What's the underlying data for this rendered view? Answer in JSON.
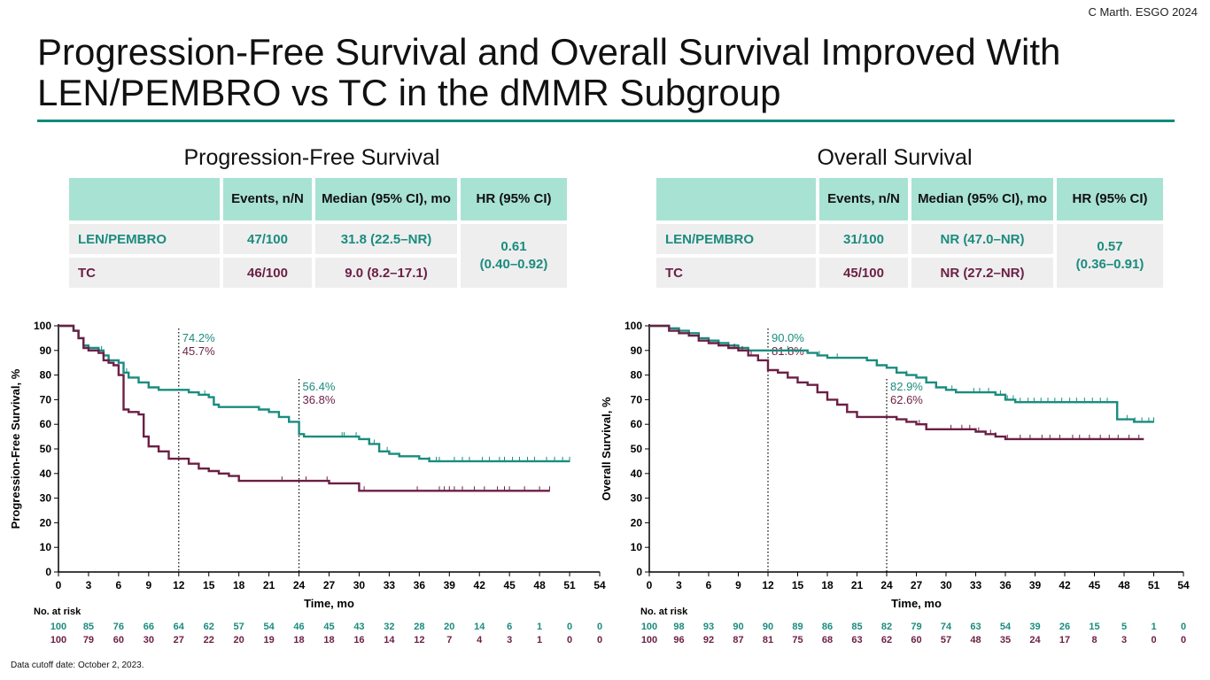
{
  "citation": "C Marth. ESGO 2024",
  "title": "Progression-Free Survival and Overall Survival Improved With LEN/PEMBRO vs TC in the dMMR Subgroup",
  "footnote": "Data cutoff date: October 2, 2023.",
  "colors": {
    "teal": "#1a8c7e",
    "maroon": "#6b1f45",
    "rule": "#0e8a7e",
    "header_fill": "#a8e2d2",
    "row_fill": "#eeeeee"
  },
  "tables": {
    "pfs": {
      "title": "Progression-Free Survival",
      "headers": [
        "Events, n/N",
        "Median (95% CI), mo",
        "HR (95% CI)"
      ],
      "rows": [
        {
          "label": "LEN/PEMBRO",
          "events": "47/100",
          "median": "31.8 (22.5–NR)"
        },
        {
          "label": "TC",
          "events": "46/100",
          "median": "9.0 (8.2–17.1)"
        }
      ],
      "hr": "0.61",
      "hr_ci": "(0.40–0.92)"
    },
    "os": {
      "title": "Overall Survival",
      "headers": [
        "Events, n/N",
        "Median (95% CI), mo",
        "HR (95% CI)"
      ],
      "rows": [
        {
          "label": "LEN/PEMBRO",
          "events": "31/100",
          "median": "NR (47.0–NR)"
        },
        {
          "label": "TC",
          "events": "45/100",
          "median": "NR (27.2–NR)"
        }
      ],
      "hr": "0.57",
      "hr_ci": "(0.36–0.91)"
    }
  },
  "chart_data": [
    {
      "id": "pfs",
      "type": "line",
      "step": true,
      "ylabel": "Progression-Free Survival, %",
      "xlabel": "Time, mo",
      "xlim": [
        0,
        54
      ],
      "ylim": [
        0,
        100
      ],
      "x_ticks": [
        0,
        3,
        6,
        9,
        12,
        15,
        18,
        21,
        24,
        27,
        30,
        33,
        36,
        39,
        42,
        45,
        48,
        51,
        54
      ],
      "y_ticks": [
        0,
        10,
        20,
        30,
        40,
        50,
        60,
        70,
        80,
        90,
        100
      ],
      "annotations": [
        {
          "x": 12,
          "labels": [
            {
              "text": "74.2%",
              "series": 0
            },
            {
              "text": "45.7%",
              "series": 1
            }
          ]
        },
        {
          "x": 24,
          "labels": [
            {
              "text": "56.4%",
              "series": 0
            },
            {
              "text": "36.8%",
              "series": 1
            }
          ]
        }
      ],
      "series": [
        {
          "color": "#1a8c7e",
          "points": [
            [
              0,
              100
            ],
            [
              1.5,
              98
            ],
            [
              2,
              95
            ],
            [
              2.5,
              92
            ],
            [
              3,
              91
            ],
            [
              4,
              90
            ],
            [
              4.5,
              88
            ],
            [
              5,
              86
            ],
            [
              6,
              85
            ],
            [
              6.5,
              81
            ],
            [
              7,
              79
            ],
            [
              8,
              77
            ],
            [
              9,
              75
            ],
            [
              10,
              74
            ],
            [
              12,
              74
            ],
            [
              13,
              73
            ],
            [
              14,
              72
            ],
            [
              15,
              71
            ],
            [
              15.5,
              68
            ],
            [
              16,
              67
            ],
            [
              18,
              67
            ],
            [
              20,
              66
            ],
            [
              21,
              65
            ],
            [
              22,
              63
            ],
            [
              23,
              61
            ],
            [
              24,
              56
            ],
            [
              24.5,
              55
            ],
            [
              27,
              55
            ],
            [
              30,
              54
            ],
            [
              31,
              52
            ],
            [
              32,
              49
            ],
            [
              33,
              48
            ],
            [
              34,
              47
            ],
            [
              35,
              47
            ],
            [
              36,
              46
            ],
            [
              37,
              45
            ],
            [
              51,
              45
            ]
          ],
          "censor_x": [
            4.3,
            6.8,
            14.6,
            28.3,
            28.5,
            29.7,
            31.5,
            32.8,
            37,
            37.7,
            38,
            39.5,
            40.3,
            41,
            42.3,
            43,
            44,
            44.5,
            45.3,
            46,
            46.8,
            47.5,
            48.7,
            49.5,
            50.3,
            51
          ]
        },
        {
          "color": "#6b1f45",
          "points": [
            [
              0,
              100
            ],
            [
              1.5,
              98
            ],
            [
              2,
              95
            ],
            [
              2.5,
              91
            ],
            [
              3,
              90
            ],
            [
              4,
              89
            ],
            [
              4.5,
              86
            ],
            [
              5,
              85
            ],
            [
              5.5,
              84
            ],
            [
              6,
              80
            ],
            [
              6.5,
              66
            ],
            [
              7,
              65
            ],
            [
              8,
              64
            ],
            [
              8.5,
              55
            ],
            [
              9,
              51
            ],
            [
              10,
              49
            ],
            [
              11,
              46
            ],
            [
              12,
              46
            ],
            [
              13,
              44
            ],
            [
              14,
              42
            ],
            [
              15,
              41
            ],
            [
              16,
              40
            ],
            [
              17,
              39
            ],
            [
              18,
              37
            ],
            [
              20,
              37
            ],
            [
              23,
              37
            ],
            [
              25,
              37
            ],
            [
              27,
              36
            ],
            [
              30,
              33
            ],
            [
              35,
              33
            ],
            [
              40,
              33
            ],
            [
              44,
              33
            ],
            [
              49,
              33
            ]
          ],
          "censor_x": [
            22.3,
            24.7,
            26.8,
            30.5,
            35.8,
            38,
            38.5,
            39,
            39.5,
            40.3,
            41.5,
            42.5,
            43.8,
            44.5,
            45,
            46.5,
            48,
            49
          ]
        }
      ],
      "at_risk": {
        "label": "No. at risk",
        "rows": [
          {
            "color": "#1a8c7e",
            "values": [
              "100",
              "85",
              "76",
              "66",
              "64",
              "62",
              "57",
              "54",
              "46",
              "45",
              "43",
              "32",
              "28",
              "20",
              "14",
              "6",
              "1",
              "0",
              "0"
            ]
          },
          {
            "color": "#6b1f45",
            "values": [
              "100",
              "79",
              "60",
              "30",
              "27",
              "22",
              "20",
              "19",
              "18",
              "18",
              "16",
              "14",
              "12",
              "7",
              "4",
              "3",
              "1",
              "0",
              "0"
            ]
          }
        ]
      }
    },
    {
      "id": "os",
      "type": "line",
      "step": true,
      "ylabel": "Overall Survival, %",
      "xlabel": "Time, mo",
      "xlim": [
        0,
        54
      ],
      "ylim": [
        0,
        100
      ],
      "x_ticks": [
        0,
        3,
        6,
        9,
        12,
        15,
        18,
        21,
        24,
        27,
        30,
        33,
        36,
        39,
        42,
        45,
        48,
        51,
        54
      ],
      "y_ticks": [
        0,
        10,
        20,
        30,
        40,
        50,
        60,
        70,
        80,
        90,
        100
      ],
      "annotations": [
        {
          "x": 12,
          "labels": [
            {
              "text": "90.0%",
              "series": 0
            },
            {
              "text": "81.8%",
              "series": 1
            }
          ]
        },
        {
          "x": 24,
          "labels": [
            {
              "text": "82.9%",
              "series": 0
            },
            {
              "text": "62.6%",
              "series": 1
            }
          ]
        }
      ],
      "series": [
        {
          "color": "#1a8c7e",
          "points": [
            [
              0,
              100
            ],
            [
              2,
              99
            ],
            [
              3,
              98
            ],
            [
              4,
              97
            ],
            [
              5,
              95
            ],
            [
              6,
              94
            ],
            [
              7,
              93
            ],
            [
              8,
              92
            ],
            [
              9,
              91
            ],
            [
              10,
              90
            ],
            [
              15,
              90
            ],
            [
              16,
              89
            ],
            [
              17,
              88
            ],
            [
              18,
              87
            ],
            [
              21,
              87
            ],
            [
              22,
              86
            ],
            [
              23,
              84
            ],
            [
              24,
              83
            ],
            [
              25,
              81
            ],
            [
              26,
              80
            ],
            [
              27,
              79
            ],
            [
              28,
              77
            ],
            [
              29,
              75
            ],
            [
              30,
              74
            ],
            [
              31,
              73
            ],
            [
              33,
              73
            ],
            [
              35,
              72
            ],
            [
              36,
              70
            ],
            [
              37,
              69
            ],
            [
              47,
              69
            ],
            [
              47.3,
              62
            ],
            [
              49,
              61
            ],
            [
              51,
              61
            ]
          ],
          "censor_x": [
            14,
            17.2,
            19,
            26,
            30.6,
            32.8,
            33.4,
            34.3,
            35.5,
            36.2,
            36.8,
            37.5,
            38.3,
            38.9,
            39.6,
            40.3,
            41,
            41.7,
            42.5,
            43.2,
            44,
            44.8,
            45.6,
            46.3,
            48.3,
            49.1,
            49.8,
            50.5,
            51
          ]
        },
        {
          "color": "#6b1f45",
          "points": [
            [
              0,
              100
            ],
            [
              2,
              98
            ],
            [
              3,
              97
            ],
            [
              4,
              96
            ],
            [
              5,
              94
            ],
            [
              6,
              93
            ],
            [
              7,
              92
            ],
            [
              8,
              91
            ],
            [
              9,
              90
            ],
            [
              10,
              88
            ],
            [
              11,
              86
            ],
            [
              12,
              82
            ],
            [
              13,
              81
            ],
            [
              14,
              79
            ],
            [
              15,
              77
            ],
            [
              16,
              76
            ],
            [
              17,
              73
            ],
            [
              18,
              70
            ],
            [
              19,
              68
            ],
            [
              20,
              65
            ],
            [
              21,
              63
            ],
            [
              22,
              63
            ],
            [
              24,
              63
            ],
            [
              25,
              62
            ],
            [
              26,
              61
            ],
            [
              27,
              60
            ],
            [
              28,
              58
            ],
            [
              32,
              58
            ],
            [
              33,
              57
            ],
            [
              34,
              56
            ],
            [
              35,
              55
            ],
            [
              36,
              54
            ],
            [
              43,
              54
            ],
            [
              50,
              54
            ]
          ],
          "censor_x": [
            8.6,
            9.4,
            10.3,
            27.3,
            30.5,
            31.6,
            32.4,
            33.3,
            34.5,
            35,
            36.2,
            37.5,
            38.5,
            39.7,
            40.5,
            41.5,
            42.8,
            43.5,
            44.5,
            45.6,
            46.5,
            47.4,
            48.5,
            49.5
          ]
        }
      ],
      "at_risk": {
        "label": "No. at risk",
        "rows": [
          {
            "color": "#1a8c7e",
            "values": [
              "100",
              "98",
              "93",
              "90",
              "90",
              "89",
              "86",
              "85",
              "82",
              "79",
              "74",
              "63",
              "54",
              "39",
              "26",
              "15",
              "5",
              "1",
              "0"
            ]
          },
          {
            "color": "#6b1f45",
            "values": [
              "100",
              "96",
              "92",
              "87",
              "81",
              "75",
              "68",
              "63",
              "62",
              "60",
              "57",
              "48",
              "35",
              "24",
              "17",
              "8",
              "3",
              "0",
              "0"
            ]
          }
        ]
      }
    }
  ]
}
